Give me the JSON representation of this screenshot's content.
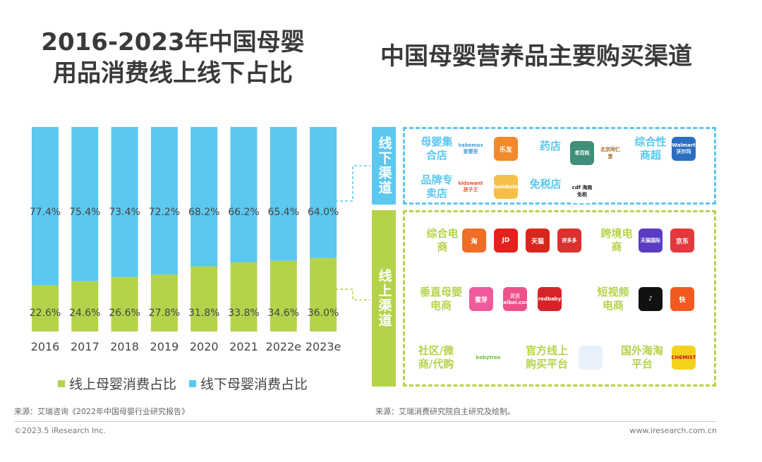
{
  "left_title": [
    "2016-2023年中国母婴",
    "用品消费线上线下占比"
  ],
  "right_title": "中国母婴营养品主要购买渠道",
  "chart_data": {
    "type": "bar",
    "stacked": true,
    "percent": true,
    "categories": [
      "2016",
      "2017",
      "2018",
      "2019",
      "2020",
      "2021",
      "2022e",
      "2023e"
    ],
    "series": [
      {
        "name": "线上母婴消费占比",
        "values": [
          22.6,
          24.6,
          26.6,
          27.8,
          31.8,
          33.8,
          34.6,
          36.0
        ],
        "color": "#b5d34a"
      },
      {
        "name": "线下母婴消费占比",
        "values": [
          77.4,
          75.4,
          73.4,
          72.2,
          68.2,
          66.2,
          65.4,
          64.0
        ],
        "color": "#5bc8ef"
      }
    ],
    "ylim": [
      0,
      100
    ],
    "grid": false,
    "legend": "bottom"
  },
  "offline": {
    "label": "线下渠道",
    "color": "#5bc8ef",
    "categories": [
      {
        "name": "母婴集合店",
        "logos": [
          {
            "text": "babemax 爱婴室",
            "bg": "#ffffff",
            "fg": "#4aa0d8"
          },
          {
            "text": "乐友",
            "bg": "#f08a2c",
            "fg": "#fff"
          }
        ]
      },
      {
        "name": "药店",
        "logos": [
          {
            "text": "老百姓",
            "bg": "#3f8f7a",
            "fg": "#fff"
          },
          {
            "text": "北京同仁堂",
            "bg": "#ffffff",
            "fg": "#a5621b"
          }
        ]
      },
      {
        "name": "综合性商超",
        "logos": [
          {
            "text": "Walmart 沃尔玛",
            "bg": "#2c6fc1",
            "fg": "#fff"
          }
        ]
      },
      {
        "name": "品牌专卖店",
        "logos": [
          {
            "text": "kidswant 孩子王",
            "bg": "#ffffff",
            "fg": "#e3542b"
          },
          {
            "text": "bolobolo",
            "bg": "#f5c04a",
            "fg": "#fff"
          }
        ]
      },
      {
        "name": "免税店",
        "logos": [
          {
            "text": "cdf 海南免税",
            "bg": "#ffffff",
            "fg": "#222"
          }
        ]
      }
    ]
  },
  "online": {
    "label": "线上渠道",
    "color": "#b5d34a",
    "categories": [
      {
        "name": "综合电商",
        "logos": [
          {
            "text": "淘",
            "bg": "#f06d25",
            "fg": "#fff"
          },
          {
            "text": "JD",
            "bg": "#e3221d",
            "fg": "#fff"
          },
          {
            "text": "天猫",
            "bg": "#d9261c",
            "fg": "#fff"
          },
          {
            "text": "拼多多",
            "bg": "#d9312e",
            "fg": "#fff"
          }
        ]
      },
      {
        "name": "跨境电商",
        "logos": [
          {
            "text": "天猫国际",
            "bg": "#5b3cc4",
            "fg": "#fff"
          },
          {
            "text": "京东",
            "bg": "#e4393c",
            "fg": "#fff"
          }
        ]
      },
      {
        "name": "垂直母婴电商",
        "logos": [
          {
            "text": "蜜芽",
            "bg": "#ee5a9c",
            "fg": "#fff"
          },
          {
            "text": "贝贝 beibei.com",
            "bg": "#f0508a",
            "fg": "#fff"
          },
          {
            "text": "redbaby",
            "bg": "#d8232a",
            "fg": "#fff"
          }
        ]
      },
      {
        "name": "短视频电商",
        "logos": [
          {
            "text": "♪",
            "bg": "#111111",
            "fg": "#fff"
          },
          {
            "text": "快",
            "bg": "#f35a1f",
            "fg": "#fff"
          }
        ]
      },
      {
        "name": "社区/微商/代购",
        "logos": [
          {
            "text": "babytree",
            "bg": "#ffffff",
            "fg": "#6cbf3e"
          }
        ]
      },
      {
        "name": "官方线上购买平台",
        "logos": [
          {
            "text": "",
            "bg": "#e8f1fb",
            "fg": "#555"
          }
        ]
      },
      {
        "name": "国外海淘平台",
        "logos": [
          {
            "text": "CHEMIST",
            "bg": "#f5d21c",
            "fg": "#c8102e"
          }
        ]
      }
    ]
  },
  "source_left": "来源：艾瑞咨询《2022年中国母婴行业研究报告》",
  "source_right": "来源：艾瑞消费研究院自主研究及绘制。",
  "copyright": "©2023.5 iResearch Inc.",
  "website": "www.iresearch.com.cn"
}
